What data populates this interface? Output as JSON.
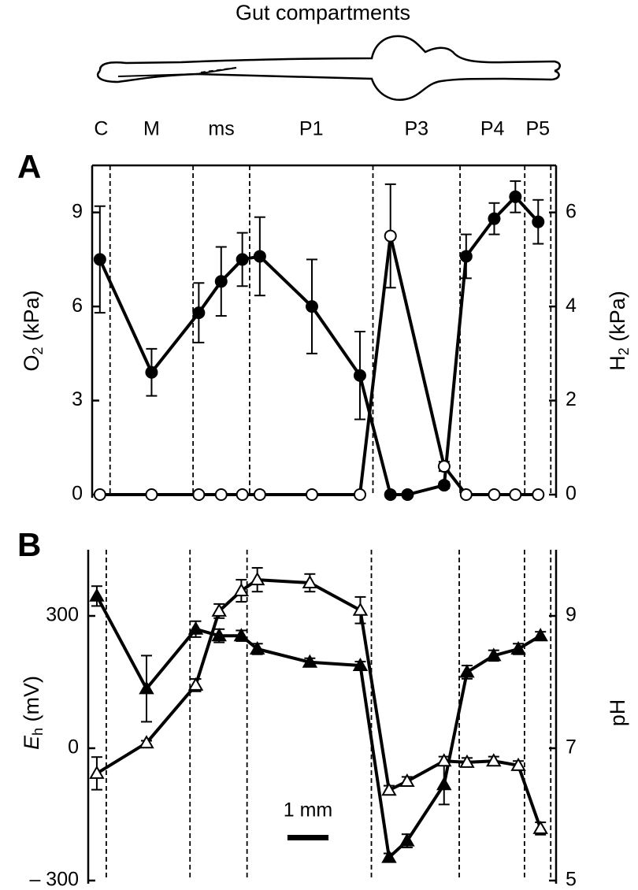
{
  "title": "Gut compartments",
  "chart_data": [
    {
      "type": "line",
      "panel": "A",
      "compartments": [
        "C",
        "M",
        "ms",
        "P1",
        "P3",
        "P4",
        "P5"
      ],
      "boundaries": [
        0.44,
        2.48,
        3.87,
        6.9,
        9.04,
        10.63,
        11.27
      ],
      "xlim": [
        0,
        11.4
      ],
      "ylim": [
        0,
        10.5
      ],
      "yticks": [
        0,
        3,
        6,
        9
      ],
      "y2lim": [
        0,
        7
      ],
      "y2ticks": [
        0,
        2,
        4,
        6
      ],
      "ylabel": {
        "main": "O",
        "sub": "2",
        "unit": " (kPa)"
      },
      "y2label": {
        "main": "H",
        "sub": "2",
        "unit": " (kPa)"
      },
      "series": [
        {
          "marker": "circle",
          "color": "#000000",
          "fill": "#000000",
          "x": [
            0.19,
            1.46,
            2.62,
            3.17,
            3.69,
            4.12,
            5.4,
            6.58,
            7.33,
            7.75,
            8.65,
            9.19,
            9.88,
            10.4,
            10.96
          ],
          "values": [
            7.5,
            3.9,
            5.8,
            6.8,
            7.5,
            7.6,
            6.0,
            3.8,
            0,
            0,
            0.3,
            7.6,
            8.8,
            9.5,
            8.7
          ],
          "errors": [
            1.7,
            0.75,
            0.95,
            1.1,
            0.85,
            1.25,
            1.5,
            1.4,
            0,
            0,
            0.1,
            0.7,
            0.5,
            0.5,
            0.7
          ]
        },
        {
          "marker": "circle",
          "color": "#000000",
          "fill": "#ffffff",
          "axis": "y2",
          "x": [
            0.19,
            1.46,
            2.62,
            3.17,
            3.69,
            4.12,
            5.4,
            6.58,
            7.33,
            8.65,
            9.19,
            9.88,
            10.4,
            10.96
          ],
          "values": [
            0,
            0,
            0,
            0,
            0,
            0,
            0,
            0,
            5.5,
            0.6,
            0,
            0,
            0,
            0
          ],
          "errors": [
            0,
            0,
            0,
            0,
            0,
            0,
            0,
            0,
            1.1,
            0.1,
            0,
            0,
            0,
            0
          ]
        }
      ]
    },
    {
      "type": "line",
      "panel": "B",
      "xlim": [
        0,
        11.4
      ],
      "ylim": [
        -300,
        450
      ],
      "yticks": [
        {
          "value": -300,
          "label": "– 300"
        },
        0,
        300
      ],
      "y2lim": [
        5,
        10
      ],
      "y2ticks": [
        5,
        7,
        9
      ],
      "ylabel": {
        "main": "E",
        "sub": "h",
        "unit": " (mV)"
      },
      "y2label": {
        "main": "pH"
      },
      "scale_bar": {
        "label": "1 mm",
        "length": 1
      },
      "series": [
        {
          "marker": "triangle",
          "color": "#000000",
          "fill": "#ffffff",
          "x": [
            0.21,
            1.42,
            2.62,
            3.19,
            3.73,
            4.12,
            5.4,
            6.63,
            7.33,
            7.77,
            8.67,
            9.23,
            9.88,
            10.48,
            11.02
          ],
          "values": [
            -57,
            12,
            143,
            311,
            357,
            382,
            375,
            313,
            -95,
            -75,
            -29,
            -32,
            -29,
            -39,
            -182
          ],
          "errors": [
            37,
            5,
            14,
            16,
            25,
            27,
            20,
            30,
            10,
            10,
            10,
            10,
            10,
            10,
            14
          ]
        },
        {
          "marker": "triangle",
          "color": "#000000",
          "fill": "#000000",
          "axis": "y2",
          "x": [
            0.21,
            1.42,
            2.62,
            3.19,
            3.73,
            4.12,
            5.4,
            6.63,
            7.33,
            7.77,
            8.67,
            9.23,
            9.88,
            10.48,
            11.02
          ],
          "values": [
            9.3,
            7.9,
            8.8,
            8.7,
            8.7,
            8.5,
            8.3,
            8.25,
            5.35,
            5.6,
            6.45,
            8.15,
            8.4,
            8.5,
            8.7
          ],
          "errors": [
            0.15,
            0.5,
            0.12,
            0.1,
            0.08,
            0.08,
            0.06,
            0.06,
            0.06,
            0.1,
            0.3,
            0.1,
            0.08,
            0.08,
            0.06
          ]
        }
      ]
    }
  ]
}
